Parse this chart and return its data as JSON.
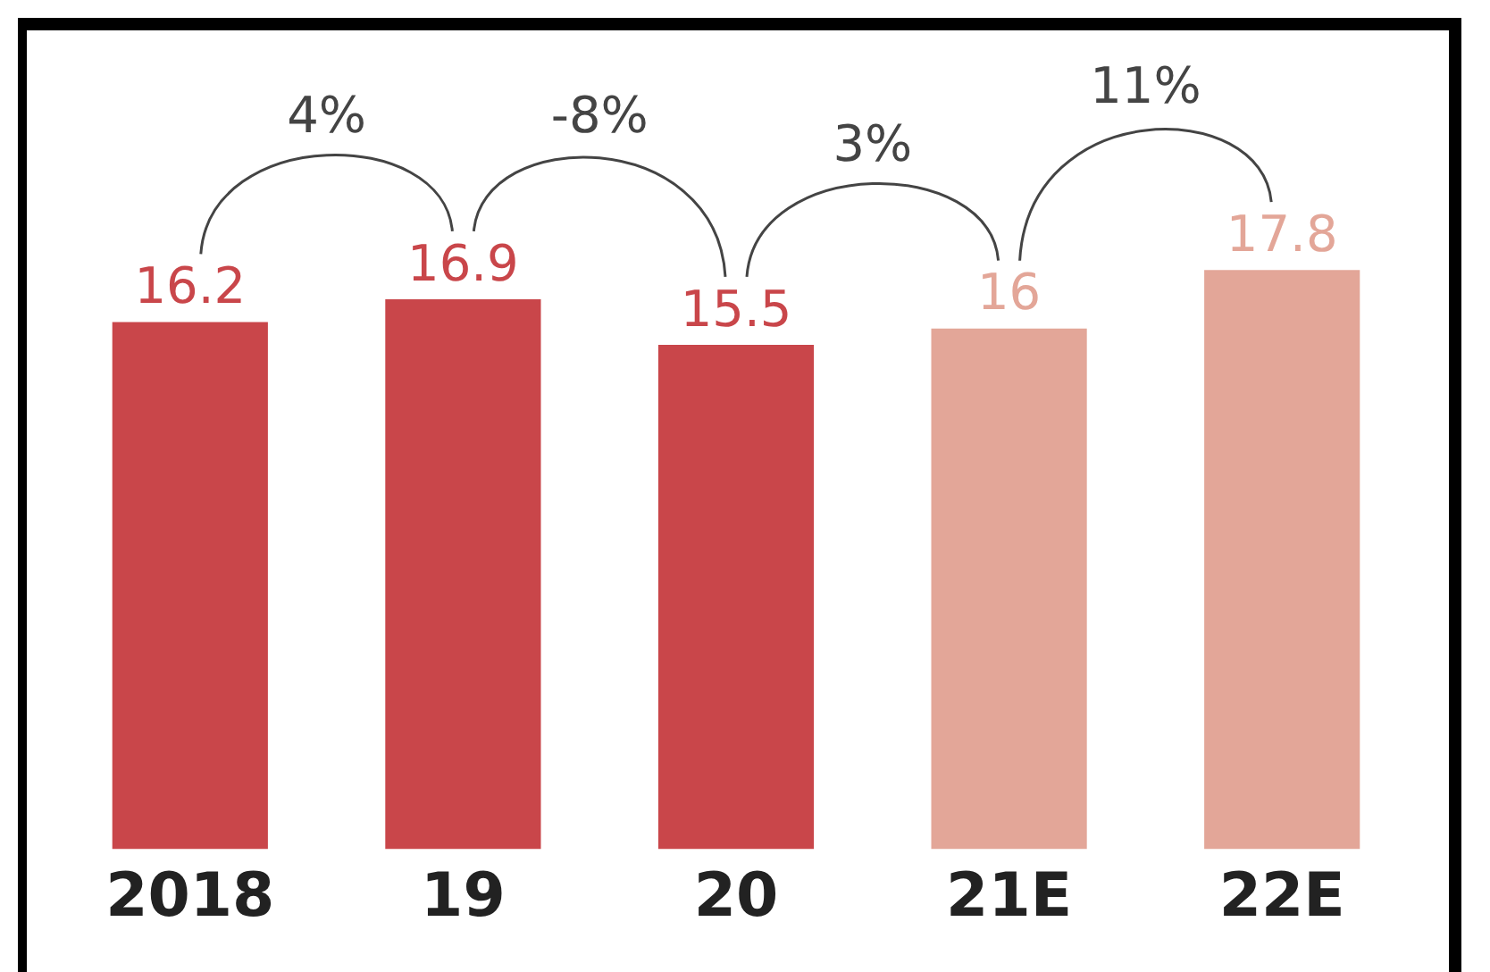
{
  "chart_data": {
    "type": "bar",
    "categories": [
      "2018",
      "19",
      "20",
      "21E",
      "22E"
    ],
    "values": [
      16.2,
      16.9,
      15.5,
      16,
      17.8
    ],
    "colors": [
      "#c9464a",
      "#c9464a",
      "#c9464a",
      "#e3a698",
      "#e3a698"
    ],
    "tick_labels": "x",
    "data_labels": true,
    "grid": false,
    "legend": false,
    "annotations": [
      "4%",
      "-8%",
      "3%",
      "11%"
    ]
  }
}
